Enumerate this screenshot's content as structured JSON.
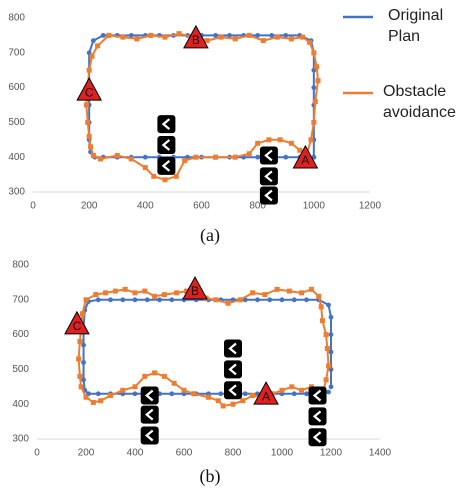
{
  "chart_data": [
    {
      "type": "line",
      "caption": "(a)",
      "xlim": [
        0,
        1200
      ],
      "xticks": [
        0,
        200,
        400,
        600,
        800,
        1000,
        1200
      ],
      "ylim": [
        300,
        800
      ],
      "yticks": [
        300,
        400,
        500,
        600,
        700,
        800
      ],
      "legend": "right",
      "series": [
        {
          "name": "Original Plan",
          "color": "#4472c4",
          "marker": "circle",
          "x": [
            1000,
            1000,
            1000,
            1000,
            1000,
            1000,
            1000,
            990,
            950,
            900,
            850,
            800,
            750,
            700,
            650,
            600,
            550,
            500,
            450,
            400,
            350,
            300,
            250,
            215,
            200,
            200,
            200,
            200,
            200,
            200,
            205,
            220,
            250,
            300,
            350,
            400,
            450,
            500,
            550,
            600,
            650,
            700,
            750,
            800,
            850,
            900,
            950,
            1000
          ],
          "values": [
            400,
            450,
            500,
            550,
            600,
            650,
            700,
            735,
            750,
            750,
            750,
            750,
            750,
            750,
            750,
            750,
            750,
            750,
            750,
            750,
            750,
            750,
            750,
            735,
            700,
            650,
            600,
            550,
            500,
            450,
            415,
            400,
            400,
            400,
            400,
            400,
            400,
            400,
            400,
            400,
            400,
            400,
            400,
            400,
            400,
            400,
            400,
            400
          ]
        },
        {
          "name": "Obstacle avoidance",
          "color": "#ed7d31",
          "marker": "square",
          "x": [
            975,
            990,
            1000,
            1005,
            1015,
            1010,
            1000,
            985,
            960,
            920,
            870,
            820,
            770,
            720,
            670,
            620,
            570,
            520,
            470,
            420,
            370,
            320,
            270,
            230,
            210,
            200,
            195,
            190,
            195,
            200,
            205,
            215,
            240,
            300,
            350,
            400,
            430,
            470,
            510,
            540,
            580,
            650,
            720,
            770,
            800,
            840,
            880,
            920,
            950,
            975
          ],
          "values": [
            410,
            450,
            500,
            560,
            620,
            660,
            700,
            730,
            745,
            740,
            745,
            735,
            750,
            740,
            745,
            735,
            745,
            755,
            745,
            750,
            740,
            745,
            750,
            720,
            690,
            650,
            600,
            550,
            500,
            460,
            430,
            405,
            395,
            405,
            395,
            370,
            345,
            335,
            345,
            390,
            400,
            400,
            400,
            410,
            440,
            450,
            450,
            440,
            420,
            410
          ]
        },
        {
          "color": "#000000",
          "marker": "obstacle",
          "x": [
            475,
            475,
            475,
            840,
            840,
            840
          ],
          "values": [
            495,
            435,
            375,
            405,
            345,
            290
          ]
        }
      ],
      "annotations": [
        {
          "text": "A",
          "x": 970,
          "y": 395,
          "color": "#e02020"
        },
        {
          "text": "B",
          "x": 580,
          "y": 740,
          "color": "#e02020"
        },
        {
          "text": "C",
          "x": 200,
          "y": 590,
          "color": "#e02020"
        }
      ]
    },
    {
      "type": "line",
      "caption": "(b)",
      "xlim": [
        0,
        1400
      ],
      "xticks": [
        0,
        200,
        400,
        600,
        800,
        1000,
        1200,
        1400
      ],
      "ylim": [
        300,
        800
      ],
      "yticks": [
        300,
        400,
        500,
        600,
        700,
        800
      ],
      "series": [
        {
          "color": "#4472c4",
          "marker": "circle",
          "x": [
            1200,
            1200,
            1200,
            1200,
            1200,
            1190,
            1150,
            1100,
            1050,
            1000,
            950,
            900,
            850,
            800,
            750,
            700,
            650,
            600,
            550,
            500,
            450,
            400,
            350,
            300,
            250,
            210,
            195,
            190,
            190,
            190,
            190,
            195,
            210,
            250,
            300,
            350,
            400,
            450,
            500,
            550,
            600,
            650,
            700,
            750,
            800,
            850,
            900,
            950,
            1000,
            1050,
            1100,
            1150,
            1190
          ],
          "values": [
            450,
            500,
            550,
            600,
            650,
            685,
            700,
            700,
            700,
            700,
            700,
            700,
            700,
            700,
            700,
            700,
            700,
            700,
            700,
            700,
            700,
            700,
            700,
            700,
            700,
            695,
            670,
            620,
            570,
            520,
            470,
            440,
            430,
            430,
            430,
            430,
            430,
            430,
            430,
            430,
            430,
            430,
            430,
            430,
            430,
            430,
            430,
            430,
            430,
            430,
            430,
            430,
            435
          ]
        },
        {
          "color": "#ed7d31",
          "marker": "square",
          "x": [
            1170,
            1180,
            1190,
            1185,
            1180,
            1165,
            1160,
            1150,
            1120,
            1080,
            1030,
            980,
            930,
            880,
            830,
            780,
            730,
            690,
            650,
            610,
            570,
            520,
            480,
            440,
            400,
            360,
            320,
            280,
            240,
            200,
            185,
            180,
            175,
            170,
            175,
            180,
            200,
            230,
            260,
            300,
            350,
            400,
            440,
            480,
            520,
            560,
            600,
            640,
            700,
            740,
            760,
            800,
            840,
            880,
            920,
            960,
            1000,
            1040,
            1080,
            1120,
            1150
          ],
          "values": [
            440,
            470,
            510,
            560,
            600,
            640,
            680,
            710,
            730,
            720,
            725,
            730,
            715,
            720,
            700,
            690,
            700,
            705,
            710,
            725,
            720,
            715,
            710,
            725,
            720,
            730,
            725,
            720,
            715,
            700,
            660,
            620,
            580,
            530,
            480,
            450,
            420,
            405,
            410,
            425,
            440,
            450,
            480,
            490,
            480,
            460,
            440,
            430,
            420,
            410,
            395,
            400,
            410,
            425,
            420,
            430,
            440,
            450,
            440,
            450,
            440
          ]
        },
        {
          "color": "#000000",
          "marker": "obstacle",
          "x": [
            460,
            460,
            460,
            800,
            800,
            800,
            1145,
            1145,
            1145
          ],
          "values": [
            425,
            370,
            310,
            560,
            500,
            440,
            425,
            365,
            305
          ]
        }
      ],
      "annotations": [
        {
          "text": "A",
          "x": 935,
          "y": 426,
          "color": "#e02020"
        },
        {
          "text": "B",
          "x": 645,
          "y": 728,
          "color": "#e02020"
        },
        {
          "text": "C",
          "x": 163,
          "y": 628,
          "color": "#e02020"
        }
      ]
    }
  ]
}
